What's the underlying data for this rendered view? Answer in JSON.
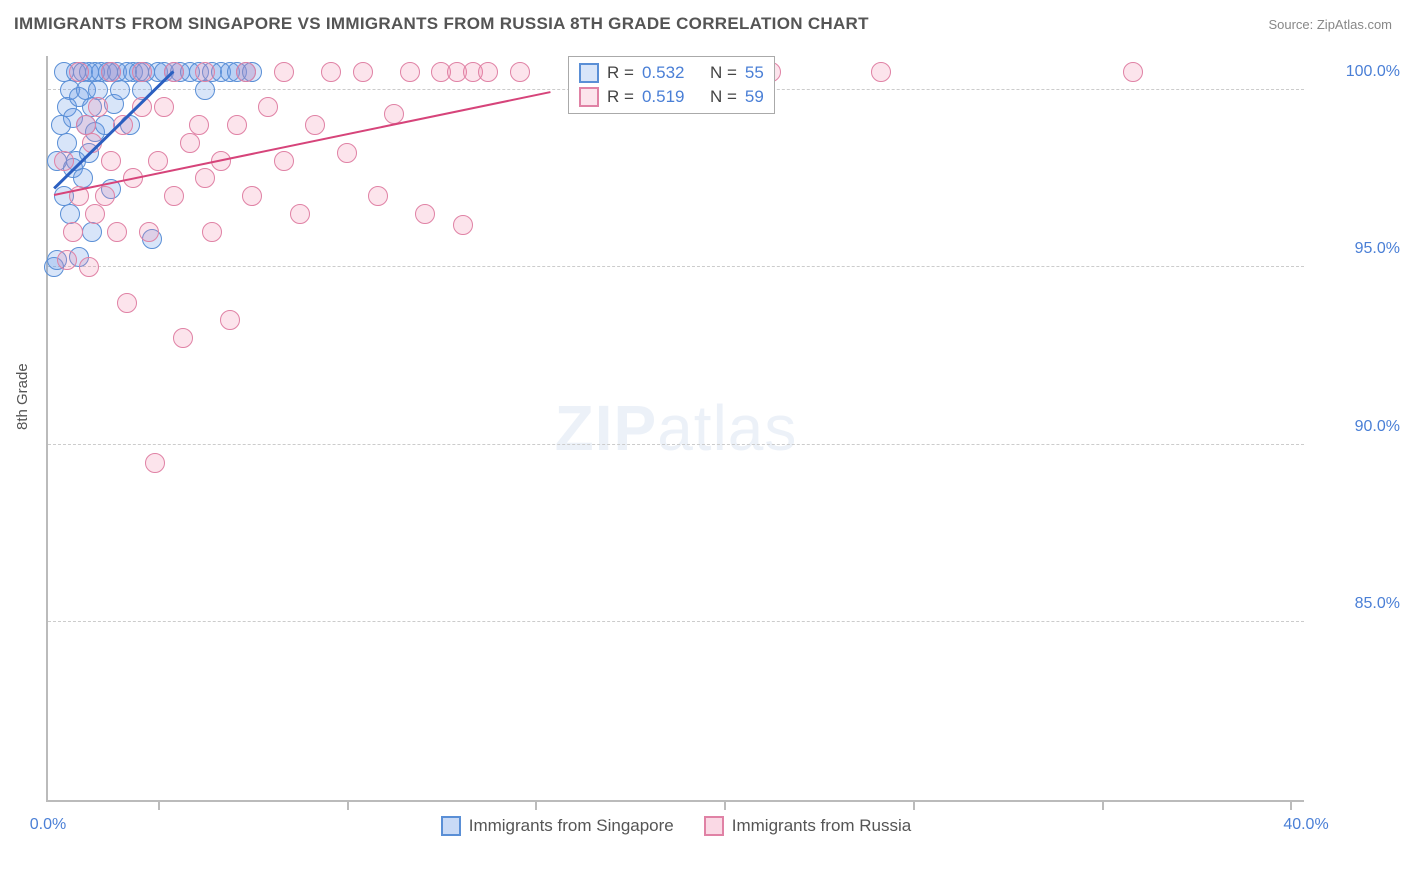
{
  "header": {
    "title": "IMMIGRANTS FROM SINGAPORE VS IMMIGRANTS FROM RUSSIA 8TH GRADE CORRELATION CHART",
    "source": "Source: ZipAtlas.com"
  },
  "watermark": {
    "bold": "ZIP",
    "light": "atlas"
  },
  "chart": {
    "type": "scatter",
    "ylabel": "8th Grade",
    "background_color": "#ffffff",
    "grid_color": "#cccccc",
    "axis_color": "#bbbbbb",
    "tick_font_color": "#4a7fd6",
    "tick_fontsize": 16,
    "label_fontsize": 15,
    "title_fontsize": 17,
    "xlim": [
      0,
      40
    ],
    "ylim": [
      80,
      101
    ],
    "yticks": [
      {
        "v": 100,
        "label": "100.0%"
      },
      {
        "v": 95,
        "label": "95.0%"
      },
      {
        "v": 90,
        "label": "90.0%"
      },
      {
        "v": 85,
        "label": "85.0%"
      }
    ],
    "xticks_marks": [
      3.5,
      9.5,
      15.5,
      21.5,
      27.5,
      33.5,
      39.5
    ],
    "xticks_labels": [
      {
        "v": 0,
        "label": "0.0%"
      },
      {
        "v": 40,
        "label": "40.0%"
      }
    ],
    "series": [
      {
        "name": "Immigrants from Singapore",
        "fill": "rgba(100,150,230,0.25)",
        "stroke": "#5a8fd6",
        "marker_radius": 10,
        "trend": {
          "x1": 0.2,
          "y1": 97.2,
          "x2": 4.0,
          "y2": 100.5,
          "color": "#2b5fc0",
          "width": 2.5
        },
        "legend": {
          "R": "0.532",
          "N": "55"
        },
        "points": [
          [
            0.2,
            95.0
          ],
          [
            0.3,
            95.2
          ],
          [
            0.3,
            98.0
          ],
          [
            0.4,
            99.0
          ],
          [
            0.5,
            100.5
          ],
          [
            0.5,
            97.0
          ],
          [
            0.6,
            99.5
          ],
          [
            0.6,
            98.5
          ],
          [
            0.7,
            100.0
          ],
          [
            0.7,
            96.5
          ],
          [
            0.8,
            97.8
          ],
          [
            0.8,
            99.2
          ],
          [
            0.9,
            100.5
          ],
          [
            0.9,
            98.0
          ],
          [
            1.0,
            95.3
          ],
          [
            1.0,
            99.8
          ],
          [
            1.1,
            100.5
          ],
          [
            1.1,
            97.5
          ],
          [
            1.2,
            99.0
          ],
          [
            1.2,
            100.0
          ],
          [
            1.3,
            98.2
          ],
          [
            1.3,
            100.5
          ],
          [
            1.4,
            96.0
          ],
          [
            1.4,
            99.5
          ],
          [
            1.5,
            100.5
          ],
          [
            1.5,
            98.8
          ],
          [
            1.6,
            100.0
          ],
          [
            1.7,
            100.5
          ],
          [
            1.8,
            99.0
          ],
          [
            1.9,
            100.5
          ],
          [
            2.0,
            100.5
          ],
          [
            2.0,
            97.2
          ],
          [
            2.1,
            99.6
          ],
          [
            2.2,
            100.5
          ],
          [
            2.3,
            100.0
          ],
          [
            2.5,
            100.5
          ],
          [
            2.6,
            99.0
          ],
          [
            2.7,
            100.5
          ],
          [
            2.9,
            100.5
          ],
          [
            3.0,
            100.0
          ],
          [
            3.1,
            100.5
          ],
          [
            3.3,
            95.8
          ],
          [
            3.5,
            100.5
          ],
          [
            3.7,
            100.5
          ],
          [
            4.0,
            100.5
          ],
          [
            4.2,
            100.5
          ],
          [
            4.5,
            100.5
          ],
          [
            4.8,
            100.5
          ],
          [
            5.0,
            100.0
          ],
          [
            5.2,
            100.5
          ],
          [
            5.5,
            100.5
          ],
          [
            5.8,
            100.5
          ],
          [
            6.0,
            100.5
          ],
          [
            6.3,
            100.5
          ],
          [
            6.5,
            100.5
          ]
        ]
      },
      {
        "name": "Immigrants from Russia",
        "fill": "rgba(240,130,170,0.22)",
        "stroke": "#e082a5",
        "marker_radius": 10,
        "trend": {
          "x1": 0.2,
          "y1": 97.0,
          "x2": 16.0,
          "y2": 99.9,
          "color": "#d6447a",
          "width": 2
        },
        "legend": {
          "R": "0.519",
          "N": "59"
        },
        "points": [
          [
            0.5,
            98.0
          ],
          [
            0.6,
            95.2
          ],
          [
            0.8,
            96.0
          ],
          [
            1.0,
            97.0
          ],
          [
            1.0,
            100.5
          ],
          [
            1.2,
            99.0
          ],
          [
            1.3,
            95.0
          ],
          [
            1.4,
            98.5
          ],
          [
            1.5,
            96.5
          ],
          [
            1.6,
            99.5
          ],
          [
            1.8,
            97.0
          ],
          [
            2.0,
            100.5
          ],
          [
            2.0,
            98.0
          ],
          [
            2.2,
            96.0
          ],
          [
            2.4,
            99.0
          ],
          [
            2.5,
            94.0
          ],
          [
            2.7,
            97.5
          ],
          [
            3.0,
            99.5
          ],
          [
            3.0,
            100.5
          ],
          [
            3.2,
            96.0
          ],
          [
            3.4,
            89.5
          ],
          [
            3.5,
            98.0
          ],
          [
            3.7,
            99.5
          ],
          [
            4.0,
            97.0
          ],
          [
            4.0,
            100.5
          ],
          [
            4.3,
            93.0
          ],
          [
            4.5,
            98.5
          ],
          [
            4.8,
            99.0
          ],
          [
            5.0,
            100.5
          ],
          [
            5.0,
            97.5
          ],
          [
            5.2,
            96.0
          ],
          [
            5.5,
            98.0
          ],
          [
            5.8,
            93.5
          ],
          [
            6.0,
            99.0
          ],
          [
            6.3,
            100.5
          ],
          [
            6.5,
            97.0
          ],
          [
            7.0,
            99.5
          ],
          [
            7.5,
            98.0
          ],
          [
            7.5,
            100.5
          ],
          [
            8.0,
            96.5
          ],
          [
            8.5,
            99.0
          ],
          [
            9.0,
            100.5
          ],
          [
            9.5,
            98.2
          ],
          [
            10.0,
            100.5
          ],
          [
            10.5,
            97.0
          ],
          [
            11.0,
            99.3
          ],
          [
            11.5,
            100.5
          ],
          [
            12.0,
            96.5
          ],
          [
            12.5,
            100.5
          ],
          [
            13.0,
            100.5
          ],
          [
            13.2,
            96.2
          ],
          [
            13.5,
            100.5
          ],
          [
            14.0,
            100.5
          ],
          [
            15.0,
            100.5
          ],
          [
            17.0,
            100.5
          ],
          [
            20.0,
            100.5
          ],
          [
            23.0,
            100.5
          ],
          [
            26.5,
            100.5
          ],
          [
            34.5,
            100.5
          ]
        ]
      }
    ]
  },
  "bottom_legend": [
    {
      "label": "Immigrants from Singapore",
      "fill": "rgba(100,150,230,0.35)",
      "stroke": "#5a8fd6"
    },
    {
      "label": "Immigrants from Russia",
      "fill": "rgba(240,130,170,0.3)",
      "stroke": "#e082a5"
    }
  ]
}
